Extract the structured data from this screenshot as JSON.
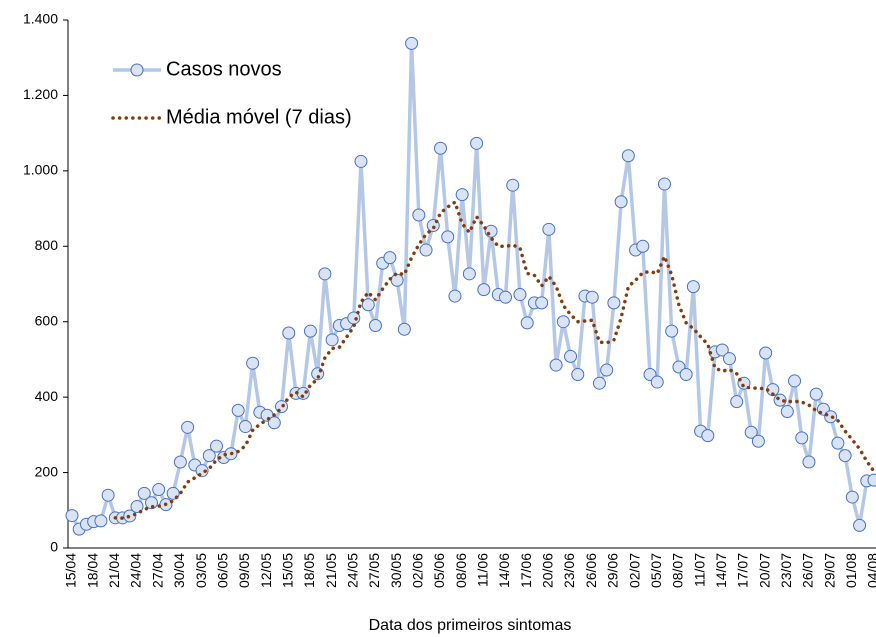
{
  "chart_data": {
    "type": "line",
    "x_label": "Data dos primeiros sintomas",
    "categories": [
      "15/04",
      null,
      null,
      "18/04",
      null,
      null,
      "21/04",
      null,
      null,
      "24/04",
      null,
      null,
      "27/04",
      null,
      null,
      "30/04",
      null,
      null,
      "03/05",
      null,
      null,
      "06/05",
      null,
      null,
      "09/05",
      null,
      null,
      "12/05",
      null,
      null,
      "15/05",
      null,
      null,
      "18/05",
      null,
      null,
      "21/05",
      null,
      null,
      "24/05",
      null,
      null,
      "27/05",
      null,
      null,
      "30/05",
      null,
      null,
      "02/06",
      null,
      null,
      "05/06",
      null,
      null,
      "08/06",
      null,
      null,
      "11/06",
      null,
      null,
      "14/06",
      null,
      null,
      "17/06",
      null,
      null,
      "20/06",
      null,
      null,
      "23/06",
      null,
      null,
      "26/06",
      null,
      null,
      "29/06",
      null,
      null,
      "02/07",
      null,
      null,
      "05/07",
      null,
      null,
      "08/07",
      null,
      null,
      "11/07",
      null,
      null,
      "14/07",
      null,
      null,
      "17/07",
      null,
      null,
      "20/07",
      null,
      null,
      "23/07",
      null,
      null,
      "26/07",
      null,
      null,
      "29/07",
      null,
      null,
      "01/08",
      null,
      null,
      "04/08"
    ],
    "series": [
      {
        "name": "Casos novos",
        "color": "#b4c7e7",
        "marker": true,
        "values": [
          86,
          50,
          63,
          70,
          72,
          140,
          80,
          80,
          85,
          110,
          145,
          120,
          155,
          115,
          145,
          228,
          320,
          220,
          205,
          245,
          270,
          240,
          250,
          365,
          322,
          490,
          360,
          352,
          332,
          375,
          570,
          410,
          410,
          575,
          462,
          727,
          552,
          590,
          595,
          610,
          1025,
          645,
          590,
          755,
          770,
          710,
          580,
          1338,
          883,
          790,
          855,
          1060,
          825,
          668,
          937,
          727,
          1073,
          685,
          840,
          672,
          665,
          962,
          672,
          597,
          650,
          650,
          845,
          485,
          600,
          508,
          460,
          668,
          665,
          437,
          472,
          650,
          918,
          1040,
          790,
          800,
          460,
          440,
          965,
          575,
          480,
          460,
          693,
          310,
          298,
          520,
          525,
          502,
          388,
          437,
          307,
          283,
          517,
          420,
          392,
          362,
          443,
          292,
          228,
          408,
          368,
          348,
          278,
          245,
          135,
          60,
          178,
          180
        ]
      },
      {
        "name": "Média móvel (7 dias)",
        "color": "#843c0c",
        "dotted": true,
        "values": [
          null,
          null,
          null,
          null,
          null,
          null,
          80,
          79,
          84,
          91,
          102,
          109,
          111,
          116,
          125,
          145,
          175,
          186,
          198,
          211,
          233,
          247,
          250,
          256,
          271,
          312,
          328,
          340,
          353,
          371,
          400,
          413,
          401,
          432,
          448,
          504,
          529,
          532,
          559,
          587,
          652,
          678,
          658,
          687,
          713,
          729,
          725,
          770,
          804,
          832,
          847,
          888,
          904,
          917,
          860,
          837,
          878,
          854,
          822,
          800,
          800,
          803,
          796,
          728,
          723,
          695,
          720,
          694,
          643,
          619,
          600,
          602,
          604,
          546,
          544,
          551,
          610,
          693,
          710,
          730,
          733,
          728,
          773,
          724,
          644,
          597,
          582,
          560,
          540,
          477,
          469,
          473,
          462,
          426,
          425,
          423,
          423,
          408,
          392,
          388,
          389,
          387,
          379,
          364,
          356,
          350,
          338,
          310,
          287,
          263,
          230,
          203
        ]
      }
    ],
    "ylim": [
      0,
      1400
    ],
    "yticks": [
      0,
      200,
      400,
      600,
      800,
      {
        "value": 1000,
        "label": "1.000"
      },
      {
        "value": 1200,
        "label": "1.200"
      },
      {
        "value": 1400,
        "label": "1.400"
      }
    ],
    "legend": "upper-left",
    "grid": false
  }
}
